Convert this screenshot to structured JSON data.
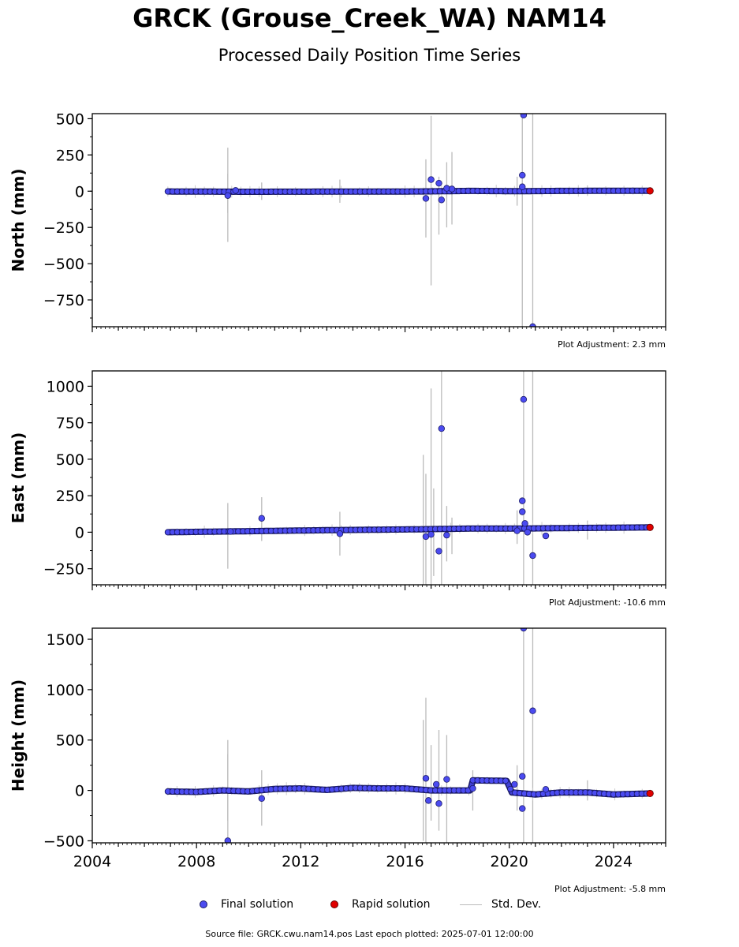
{
  "title": "GRCK (Grouse_Creek_WA) NAM14",
  "subtitle": "Processed Daily Position Time Series",
  "footer": "Source file: GRCK.cwu.nam14.pos  Last epoch plotted: 2025-07-01 12:00:00",
  "legend": {
    "final": "Final solution",
    "rapid": "Rapid solution",
    "stddev": "Std. Dev."
  },
  "colors": {
    "final": "#4b4bf0",
    "final_edge": "#1a1a66",
    "rapid": "#e00000",
    "stddev": "#bbbbbb"
  },
  "chart_data": [
    {
      "type": "scatter",
      "ylabel": "North (mm)",
      "adjustment": "Plot Adjustment: 2.3 mm",
      "xlim": [
        2004,
        2026
      ],
      "ylim": [
        -935,
        535
      ],
      "yticks": [
        500,
        250,
        0,
        -250,
        -500,
        -750
      ],
      "ytick_labels": [
        "500",
        "250",
        "0",
        "−250",
        "−500",
        "−750"
      ],
      "series_trend": [
        [
          2006.9,
          -2
        ],
        [
          2010,
          -4
        ],
        [
          2013,
          -3
        ],
        [
          2016.5,
          -2
        ],
        [
          2018.5,
          2
        ],
        [
          2020.3,
          0
        ],
        [
          2022,
          2
        ],
        [
          2025.4,
          3
        ]
      ],
      "outliers": [
        [
          2009.2,
          -30
        ],
        [
          2009.5,
          5
        ],
        [
          2016.8,
          -50
        ],
        [
          2017.0,
          80
        ],
        [
          2017.3,
          55
        ],
        [
          2017.4,
          -60
        ],
        [
          2017.6,
          20
        ],
        [
          2017.8,
          15
        ],
        [
          2020.5,
          110
        ],
        [
          2020.5,
          30
        ],
        [
          2020.55,
          525
        ],
        [
          2020.9,
          -935
        ]
      ],
      "errbars": [
        [
          2009.2,
          -350,
          300
        ],
        [
          2009.2,
          -150,
          120
        ],
        [
          2010.5,
          -60,
          60
        ],
        [
          2013.5,
          -80,
          80
        ],
        [
          2016.8,
          -320,
          220
        ],
        [
          2017.0,
          -650,
          520
        ],
        [
          2017.3,
          -300,
          100
        ],
        [
          2017.6,
          -250,
          200
        ],
        [
          2017.8,
          -230,
          270
        ],
        [
          2020.3,
          -100,
          100
        ],
        [
          2020.5,
          -935,
          535
        ],
        [
          2020.9,
          -935,
          535
        ],
        [
          2023,
          -30,
          40
        ]
      ],
      "rapid": [
        [
          2025.4,
          2
        ]
      ]
    },
    {
      "type": "scatter",
      "ylabel": "East (mm)",
      "adjustment": "Plot Adjustment: -10.6 mm",
      "xlim": [
        2004,
        2026
      ],
      "ylim": [
        -360,
        1105
      ],
      "yticks": [
        1000,
        750,
        500,
        250,
        0,
        -250
      ],
      "ytick_labels": [
        "1000",
        "750",
        "500",
        "250",
        "0",
        "−250"
      ],
      "series_trend": [
        [
          2006.9,
          0
        ],
        [
          2010,
          7
        ],
        [
          2013,
          14
        ],
        [
          2016.5,
          20
        ],
        [
          2018.5,
          25
        ],
        [
          2020.3,
          25
        ],
        [
          2022,
          28
        ],
        [
          2025.4,
          33
        ]
      ],
      "outliers": [
        [
          2009.3,
          5
        ],
        [
          2010.5,
          95
        ],
        [
          2013.5,
          -10
        ],
        [
          2016.8,
          -30
        ],
        [
          2017.0,
          -15
        ],
        [
          2017.3,
          -130
        ],
        [
          2017.4,
          710
        ],
        [
          2017.6,
          -20
        ],
        [
          2020.3,
          10
        ],
        [
          2020.5,
          215
        ],
        [
          2020.5,
          140
        ],
        [
          2020.55,
          910
        ],
        [
          2020.6,
          60
        ],
        [
          2020.7,
          0
        ],
        [
          2020.9,
          -160
        ],
        [
          2021.4,
          -25
        ]
      ],
      "errbars": [
        [
          2009.2,
          -250,
          200
        ],
        [
          2010.5,
          -60,
          240
        ],
        [
          2013.5,
          -160,
          140
        ],
        [
          2016.7,
          -360,
          530
        ],
        [
          2016.8,
          -360,
          400
        ],
        [
          2017.0,
          -360,
          985
        ],
        [
          2017.1,
          -300,
          300
        ],
        [
          2017.4,
          -360,
          1105
        ],
        [
          2017.6,
          -200,
          180
        ],
        [
          2017.8,
          -150,
          100
        ],
        [
          2020.3,
          -80,
          150
        ],
        [
          2020.55,
          -360,
          1105
        ],
        [
          2020.9,
          -360,
          1105
        ],
        [
          2023,
          -50,
          80
        ]
      ],
      "rapid": [
        [
          2025.4,
          33
        ]
      ]
    },
    {
      "type": "scatter",
      "ylabel": "Height (mm)",
      "adjustment": "Plot Adjustment: -5.8 mm",
      "xlim": [
        2004,
        2026
      ],
      "ylim": [
        -520,
        1610
      ],
      "yticks": [
        1500,
        1000,
        500,
        0,
        -500
      ],
      "ytick_labels": [
        "1500",
        "1000",
        "500",
        "0",
        "−500"
      ],
      "xticks": [
        2004,
        2008,
        2012,
        2016,
        2020,
        2024
      ],
      "xtick_labels": [
        "2004",
        "2008",
        "2012",
        "2016",
        "2020",
        "2024"
      ],
      "series_trend": [
        [
          2006.9,
          -10
        ],
        [
          2008,
          -15
        ],
        [
          2009,
          0
        ],
        [
          2010,
          -10
        ],
        [
          2011,
          15
        ],
        [
          2012,
          20
        ],
        [
          2013,
          5
        ],
        [
          2014,
          25
        ],
        [
          2015,
          20
        ],
        [
          2016,
          20
        ],
        [
          2017,
          0
        ],
        [
          2018.5,
          0
        ],
        [
          2018.6,
          100
        ],
        [
          2019.9,
          95
        ],
        [
          2020.1,
          -20
        ],
        [
          2021,
          -40
        ],
        [
          2022,
          -20
        ],
        [
          2023,
          -20
        ],
        [
          2024,
          -40
        ],
        [
          2025.4,
          -30
        ]
      ],
      "outliers": [
        [
          2009.2,
          -500
        ],
        [
          2010.5,
          -80
        ],
        [
          2016.8,
          120
        ],
        [
          2016.9,
          -100
        ],
        [
          2017.2,
          60
        ],
        [
          2017.3,
          -130
        ],
        [
          2017.6,
          110
        ],
        [
          2018.6,
          20
        ],
        [
          2020.2,
          60
        ],
        [
          2020.5,
          -180
        ],
        [
          2020.5,
          140
        ],
        [
          2020.55,
          1610
        ],
        [
          2020.9,
          790
        ],
        [
          2021.4,
          10
        ]
      ],
      "errbars": [
        [
          2009.2,
          -500,
          500
        ],
        [
          2009.2,
          -300,
          360
        ],
        [
          2010.5,
          -350,
          200
        ],
        [
          2016.7,
          -500,
          700
        ],
        [
          2016.8,
          -520,
          920
        ],
        [
          2017.0,
          -300,
          450
        ],
        [
          2017.3,
          -400,
          600
        ],
        [
          2017.6,
          -520,
          550
        ],
        [
          2018.6,
          -200,
          200
        ],
        [
          2020.3,
          -200,
          250
        ],
        [
          2020.55,
          -520,
          1610
        ],
        [
          2020.9,
          -520,
          1610
        ],
        [
          2023,
          -100,
          100
        ]
      ],
      "rapid": [
        [
          2025.4,
          -30
        ]
      ]
    }
  ]
}
